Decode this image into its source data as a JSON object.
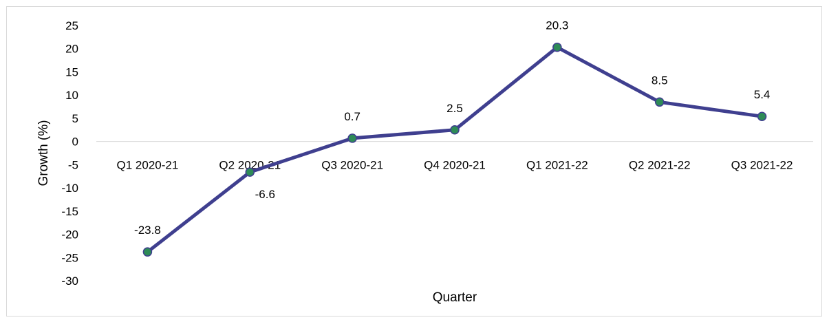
{
  "chart_data": {
    "type": "line",
    "title": "",
    "xlabel": "Quarter",
    "ylabel": "Growth (%)",
    "categories": [
      "Q1 2020-21",
      "Q2 2020-21",
      "Q3 2020-21",
      "Q4 2020-21",
      "Q1 2021-22",
      "Q2 2021-22",
      "Q3 2021-22"
    ],
    "series": [
      {
        "values": [
          -23.8,
          -6.6,
          0.7,
          2.5,
          20.3,
          8.5,
          5.4
        ]
      }
    ],
    "data_labels": [
      "-23.8",
      "-6.6",
      "0.7",
      "2.5",
      "20.3",
      "8.5",
      "5.4"
    ],
    "ylim": [
      -30,
      25
    ],
    "yticks": [
      25,
      20,
      15,
      10,
      5,
      0,
      -5,
      -10,
      -15,
      -20,
      -25,
      -30
    ],
    "grid": false,
    "legend": "none",
    "colors": {
      "line": "#3f3f8f",
      "marker_fill": "#2e8b57",
      "marker_edge": "#3f3f8f",
      "axis": "#d9d9d9"
    }
  }
}
